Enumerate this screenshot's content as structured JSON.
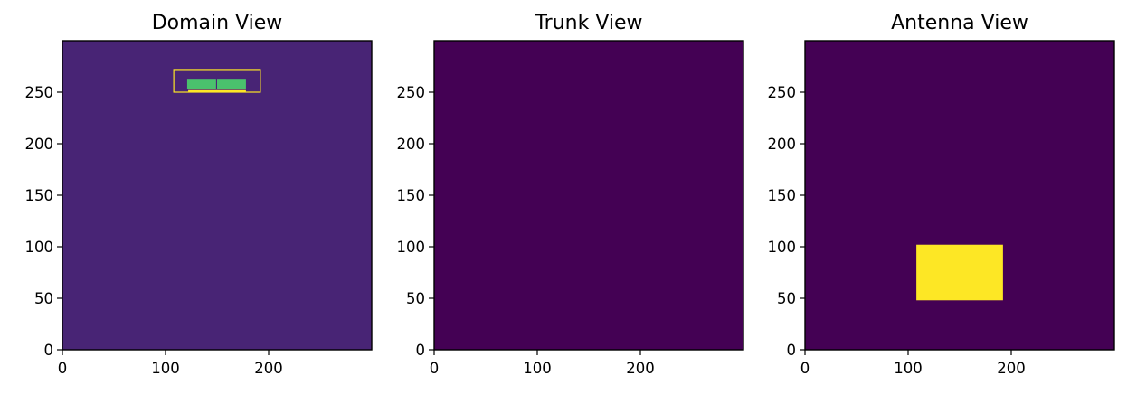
{
  "chart_data": [
    {
      "type": "heatmap",
      "title": "Domain View",
      "xlim": [
        0,
        300
      ],
      "ylim": [
        0,
        300
      ],
      "xticks": [
        0,
        100,
        200
      ],
      "yticks": [
        0,
        50,
        100,
        150,
        200,
        250
      ],
      "background_color": "#482475",
      "regions": [
        {
          "name": "outline",
          "x": [
            108,
            192
          ],
          "y": [
            250,
            272
          ],
          "color": "#fde725",
          "style": "outline"
        },
        {
          "name": "bar",
          "x": [
            122,
            178
          ],
          "y": [
            250,
            252
          ],
          "color": "#fde725",
          "style": "fill"
        },
        {
          "name": "block-left",
          "x": [
            121,
            149
          ],
          "y": [
            253,
            263
          ],
          "color": "#4ac16d",
          "style": "fill"
        },
        {
          "name": "block-right",
          "x": [
            150,
            178
          ],
          "y": [
            253,
            263
          ],
          "color": "#4ac16d",
          "style": "fill"
        }
      ]
    },
    {
      "type": "heatmap",
      "title": "Trunk View",
      "xlim": [
        0,
        300
      ],
      "ylim": [
        0,
        300
      ],
      "xticks": [
        0,
        100,
        200
      ],
      "yticks": [
        0,
        50,
        100,
        150,
        200,
        250
      ],
      "background_color": "#440154",
      "regions": []
    },
    {
      "type": "heatmap",
      "title": "Antenna View",
      "xlim": [
        0,
        300
      ],
      "ylim": [
        0,
        300
      ],
      "xticks": [
        0,
        100,
        200
      ],
      "yticks": [
        0,
        50,
        100,
        150,
        200,
        250
      ],
      "background_color": "#440154",
      "regions": [
        {
          "name": "block",
          "x": [
            108,
            192
          ],
          "y": [
            48,
            102
          ],
          "color": "#fde725",
          "style": "fill"
        }
      ]
    }
  ]
}
